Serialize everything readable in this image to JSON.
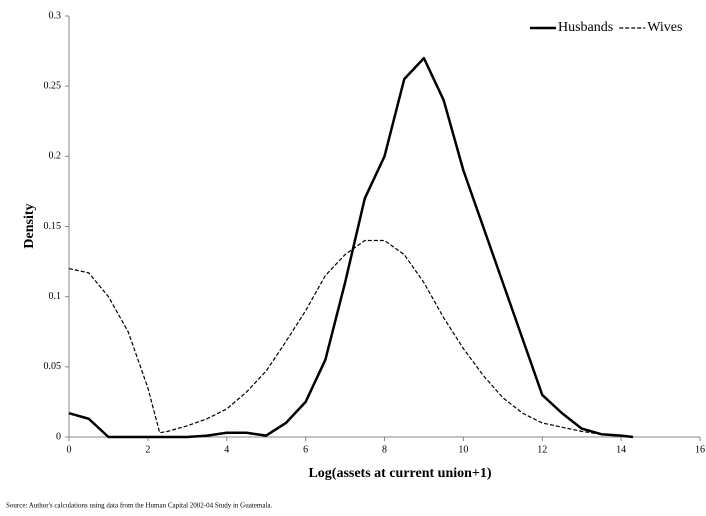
{
  "chart_data": {
    "type": "line",
    "x_label": "Log(assets at current union+1)",
    "y_label": "Density",
    "source": "Source: Author's calculations  using data from the Human Capital  2002-04 Study in Guatemala.",
    "x": [
      0,
      0.5,
      1,
      1.5,
      2,
      2.3,
      2.5,
      3,
      3.5,
      4,
      4.5,
      5,
      5.5,
      6,
      6.5,
      7,
      7.5,
      8,
      8.5,
      9,
      9.5,
      10,
      10.5,
      11,
      11.5,
      12,
      12.5,
      13,
      13.5,
      14,
      14.3
    ],
    "series": [
      {
        "name": "Husbands",
        "color": "#000000",
        "dashed": false,
        "values": [
          0.017,
          0.013,
          0,
          0,
          0,
          0,
          0,
          0,
          0.001,
          0.003,
          0.003,
          0.001,
          0.01,
          0.025,
          0.055,
          0.11,
          0.17,
          0.2,
          0.255,
          0.27,
          0.24,
          0.19,
          0.15,
          0.11,
          0.07,
          0.03,
          0.017,
          0.006,
          0.002,
          0.001,
          0
        ]
      },
      {
        "name": "Wives",
        "color": "#000000",
        "dashed": true,
        "values": [
          0.12,
          0.117,
          0.1,
          0.075,
          0.035,
          0.003,
          0.004,
          0.008,
          0.013,
          0.02,
          0.032,
          0.047,
          0.068,
          0.09,
          0.115,
          0.13,
          0.14,
          0.14,
          0.13,
          0.11,
          0.085,
          0.063,
          0.044,
          0.028,
          0.017,
          0.01,
          0.007,
          0.004,
          0.002,
          0.001,
          0
        ]
      }
    ],
    "xlim": [
      0,
      16
    ],
    "xticks": [
      0,
      2,
      4,
      6,
      8,
      10,
      12,
      14,
      16
    ],
    "ylim": [
      0,
      0.3
    ],
    "yticks": [
      0,
      0.05,
      0.1,
      0.15,
      0.2,
      0.25,
      0.3
    ],
    "legend": "top-right"
  }
}
